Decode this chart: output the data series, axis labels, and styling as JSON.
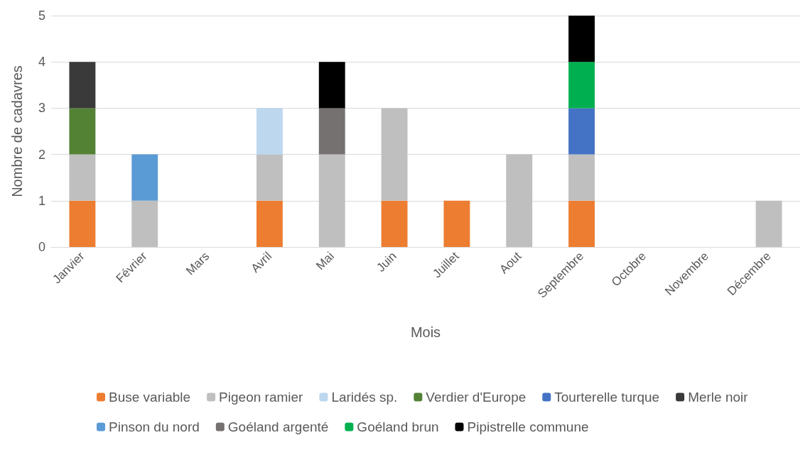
{
  "chart_data": {
    "type": "bar",
    "xlabel": "Mois",
    "ylabel": "Nombre de cadavres",
    "categories": [
      "Janvier",
      "Février",
      "Mars",
      "Avril",
      "Mai",
      "Juin",
      "Juillet",
      "Aout",
      "Septembre",
      "Octobre",
      "Novembre",
      "Décembre"
    ],
    "stacked": true,
    "ylim": [
      0,
      5
    ],
    "yticks": [
      0,
      1,
      2,
      3,
      4,
      5
    ],
    "grid": "y",
    "legend": "bottom",
    "series": [
      {
        "name": "Buse variable",
        "color": "#ed7d31",
        "values": [
          1,
          0,
          0,
          1,
          0,
          1,
          1,
          0,
          1,
          0,
          0,
          0
        ]
      },
      {
        "name": "Pigeon ramier",
        "color": "#bfbfbf",
        "values": [
          1,
          1,
          0,
          1,
          2,
          2,
          0,
          2,
          1,
          0,
          0,
          1
        ]
      },
      {
        "name": "Laridés sp.",
        "color": "#bdd7ee",
        "values": [
          0,
          0,
          0,
          1,
          0,
          0,
          0,
          0,
          0,
          0,
          0,
          0
        ]
      },
      {
        "name": "Verdier d'Europe",
        "color": "#548235",
        "values": [
          1,
          0,
          0,
          0,
          0,
          0,
          0,
          0,
          0,
          0,
          0,
          0
        ]
      },
      {
        "name": "Tourterelle turque",
        "color": "#4472c4",
        "values": [
          0,
          0,
          0,
          0,
          0,
          0,
          0,
          0,
          1,
          0,
          0,
          0
        ]
      },
      {
        "name": "Merle noir",
        "color": "#3a3a3a",
        "values": [
          1,
          0,
          0,
          0,
          0,
          0,
          0,
          0,
          0,
          0,
          0,
          0
        ]
      },
      {
        "name": "Pinson du nord",
        "color": "#5b9bd5",
        "values": [
          0,
          1,
          0,
          0,
          0,
          0,
          0,
          0,
          0,
          0,
          0,
          0
        ]
      },
      {
        "name": "Goéland argenté",
        "color": "#767171",
        "values": [
          0,
          0,
          0,
          0,
          1,
          0,
          0,
          0,
          0,
          0,
          0,
          0
        ]
      },
      {
        "name": "Goéland brun",
        "color": "#00b050",
        "values": [
          0,
          0,
          0,
          0,
          0,
          0,
          0,
          0,
          1,
          0,
          0,
          0
        ]
      },
      {
        "name": "Pipistrelle commune",
        "color": "#000000",
        "values": [
          0,
          0,
          0,
          0,
          1,
          0,
          0,
          0,
          1,
          0,
          0,
          0
        ]
      }
    ]
  }
}
